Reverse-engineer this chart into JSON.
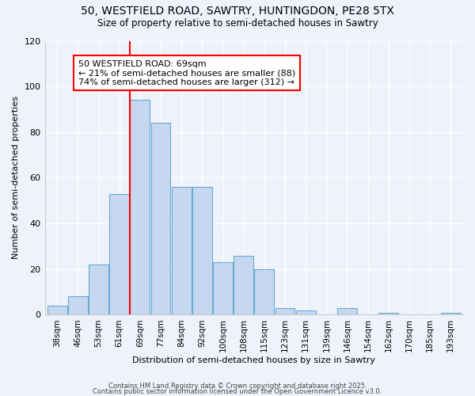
{
  "title_line1": "50, WESTFIELD ROAD, SAWTRY, HUNTINGDON, PE28 5TX",
  "title_line2": "Size of property relative to semi-detached houses in Sawtry",
  "xlabel": "Distribution of semi-detached houses by size in Sawtry",
  "ylabel": "Number of semi-detached properties",
  "categories": [
    "38sqm",
    "46sqm",
    "53sqm",
    "61sqm",
    "69sqm",
    "77sqm",
    "84sqm",
    "92sqm",
    "100sqm",
    "108sqm",
    "115sqm",
    "123sqm",
    "131sqm",
    "139sqm",
    "146sqm",
    "154sqm",
    "162sqm",
    "170sqm",
    "185sqm",
    "193sqm"
  ],
  "values": [
    4,
    8,
    22,
    53,
    94,
    84,
    56,
    56,
    23,
    26,
    20,
    3,
    2,
    0,
    3,
    0,
    1,
    0,
    0,
    1
  ],
  "bar_color": "#c5d8f0",
  "bar_edge_color": "#6aaad4",
  "red_line_index": 4,
  "annotation_title": "50 WESTFIELD ROAD: 69sqm",
  "annotation_line1": "← 21% of semi-detached houses are smaller (88)",
  "annotation_line2": "74% of semi-detached houses are larger (312) →",
  "ylim": [
    0,
    120
  ],
  "yticks": [
    0,
    20,
    40,
    60,
    80,
    100,
    120
  ],
  "footer_line1": "Contains HM Land Registry data © Crown copyright and database right 2025.",
  "footer_line2": "Contains public sector information licensed under the Open Government Licence v3.0.",
  "bg_color": "#eef2fb",
  "grid_color": "#ffffff"
}
